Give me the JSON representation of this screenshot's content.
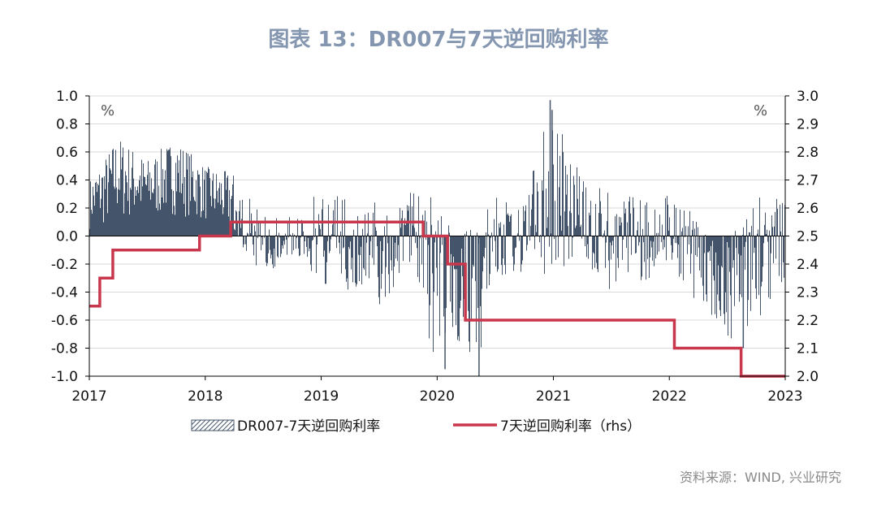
{
  "title": "图表 13：DR007与7天逆回购利率",
  "source": "资料来源：WIND, 兴业研究",
  "colors": {
    "bars": "#44546A",
    "line": "#C8374B",
    "title": "#8496B0",
    "grid": "#d9d9d9"
  },
  "chart_data": {
    "type": "bar+line",
    "x_range": [
      "2017-01-01",
      "2023-01-01"
    ],
    "x_ticks": [
      "2017",
      "2018",
      "2019",
      "2020",
      "2021",
      "2022",
      "2023"
    ],
    "left_axis": {
      "min": -1.0,
      "max": 1.0,
      "step": 0.2,
      "unit": "%",
      "ticks": [
        "1.0",
        "0.8",
        "0.6",
        "0.4",
        "0.2",
        "0.0",
        "-0.2",
        "-0.4",
        "-0.6",
        "-0.8",
        "-1.0"
      ]
    },
    "right_axis": {
      "min": 2.0,
      "max": 3.0,
      "step": 0.1,
      "unit": "%",
      "ticks": [
        "3.0",
        "2.9",
        "2.8",
        "2.7",
        "2.6",
        "2.5",
        "2.4",
        "2.3",
        "2.2",
        "2.1",
        "2.0"
      ]
    },
    "grid": true,
    "legend_position": "bottom",
    "series": [
      {
        "name": "DR007-7天逆回购利率",
        "type": "bar",
        "axis": "left",
        "envelope": [
          {
            "t": "2017-01-01",
            "hi": 0.4,
            "lo": 0.05
          },
          {
            "t": "2017-02-15",
            "hi": 0.55,
            "lo": 0.05
          },
          {
            "t": "2017-04-01",
            "hi": 0.72,
            "lo": 0.1
          },
          {
            "t": "2017-07-01",
            "hi": 0.55,
            "lo": 0.1
          },
          {
            "t": "2017-10-01",
            "hi": 0.7,
            "lo": 0.15
          },
          {
            "t": "2018-01-01",
            "hi": 0.5,
            "lo": 0.1
          },
          {
            "t": "2018-04-01",
            "hi": 0.45,
            "lo": 0.0
          },
          {
            "t": "2018-07-01",
            "hi": 0.15,
            "lo": -0.28
          },
          {
            "t": "2018-10-01",
            "hi": 0.15,
            "lo": -0.15
          },
          {
            "t": "2019-01-01",
            "hi": 0.35,
            "lo": -0.35
          },
          {
            "t": "2019-04-01",
            "hi": 0.3,
            "lo": -0.4
          },
          {
            "t": "2019-07-01",
            "hi": 0.3,
            "lo": -0.6
          },
          {
            "t": "2019-10-01",
            "hi": 0.4,
            "lo": -0.15
          },
          {
            "t": "2020-01-01",
            "hi": 0.3,
            "lo": -0.95
          },
          {
            "t": "2020-03-01",
            "hi": 0.1,
            "lo": -0.75
          },
          {
            "t": "2020-05-01",
            "hi": 0.05,
            "lo": -1.0
          },
          {
            "t": "2020-07-01",
            "hi": 0.3,
            "lo": -0.4
          },
          {
            "t": "2020-10-01",
            "hi": 0.4,
            "lo": -0.25
          },
          {
            "t": "2021-01-01",
            "hi": 0.97,
            "lo": -0.3
          },
          {
            "t": "2021-04-01",
            "hi": 0.4,
            "lo": -0.2
          },
          {
            "t": "2021-07-01",
            "hi": 0.35,
            "lo": -0.4
          },
          {
            "t": "2021-10-01",
            "hi": 0.3,
            "lo": -0.35
          },
          {
            "t": "2022-01-01",
            "hi": 0.3,
            "lo": -0.2
          },
          {
            "t": "2022-03-01",
            "hi": 0.2,
            "lo": -0.4
          },
          {
            "t": "2022-05-01",
            "hi": 0.05,
            "lo": -0.55
          },
          {
            "t": "2022-08-01",
            "hi": 0.05,
            "lo": -0.8
          },
          {
            "t": "2022-11-01",
            "hi": 0.4,
            "lo": -0.55
          },
          {
            "t": "2023-01-01",
            "hi": 0.35,
            "lo": -0.4
          }
        ]
      },
      {
        "name": "7天逆回购利率（rhs）",
        "type": "step-line",
        "axis": "right",
        "points": [
          {
            "t": "2017-01-01",
            "v": 2.25
          },
          {
            "t": "2017-02-03",
            "v": 2.35
          },
          {
            "t": "2017-03-16",
            "v": 2.45
          },
          {
            "t": "2017-12-14",
            "v": 2.5
          },
          {
            "t": "2018-03-22",
            "v": 2.55
          },
          {
            "t": "2019-11-18",
            "v": 2.5
          },
          {
            "t": "2020-02-03",
            "v": 2.4
          },
          {
            "t": "2020-03-30",
            "v": 2.2
          },
          {
            "t": "2022-01-17",
            "v": 2.1
          },
          {
            "t": "2022-08-15",
            "v": 2.0
          },
          {
            "t": "2023-01-01",
            "v": 2.0
          }
        ]
      }
    ]
  }
}
